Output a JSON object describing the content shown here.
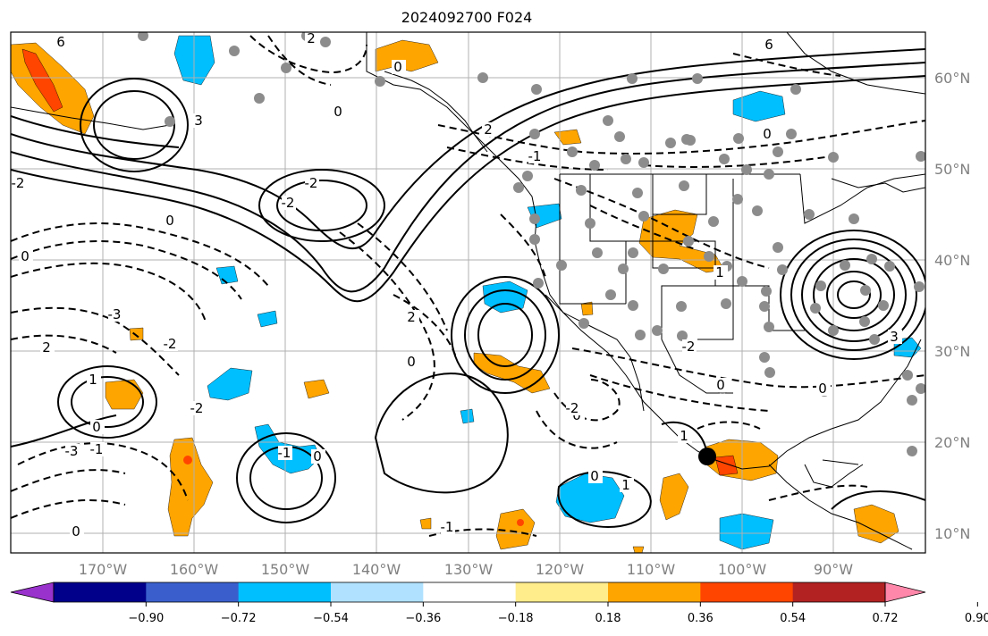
{
  "title": "2024092700 F024",
  "lat_labels": [
    "60°N",
    "50°N",
    "40°N",
    "30°N",
    "20°N",
    "10°N"
  ],
  "lon_labels": [
    "170°W",
    "160°W",
    "150°W",
    "140°W",
    "130°W",
    "120°W",
    "110°W",
    "100°W",
    "90°W"
  ],
  "colorbar": {
    "ticks": [
      "−0.90",
      "−0.72",
      "−0.54",
      "−0.36",
      "−0.18",
      "0.18",
      "0.36",
      "0.54",
      "0.72",
      "0.90"
    ],
    "colors": [
      "#9932cc",
      "#00008b",
      "#3a5fcd",
      "#00bfff",
      "#b0e2ff",
      "#ffffff",
      "#ffec8b",
      "#ffa500",
      "#ff4500",
      "#b22222",
      "#ff88aa"
    ]
  },
  "contour_labels": [
    "6",
    "0",
    "3",
    "2",
    "0",
    "-3",
    "-2",
    "0",
    "-1",
    "1",
    "0",
    "-2",
    "-1",
    "0",
    "1",
    "-3",
    "-2",
    "-2",
    "2",
    "0",
    "0",
    "-2",
    "0",
    "-1",
    "0",
    "0",
    "1",
    "-2",
    "0",
    "3",
    "6",
    "2",
    "-1",
    "1",
    "0",
    "-2",
    "2",
    "0"
  ],
  "marker": "black-dot",
  "colors": {
    "gridline": "#b0b0b0",
    "axis_label": "#808080",
    "station": "#8c8c8c"
  }
}
